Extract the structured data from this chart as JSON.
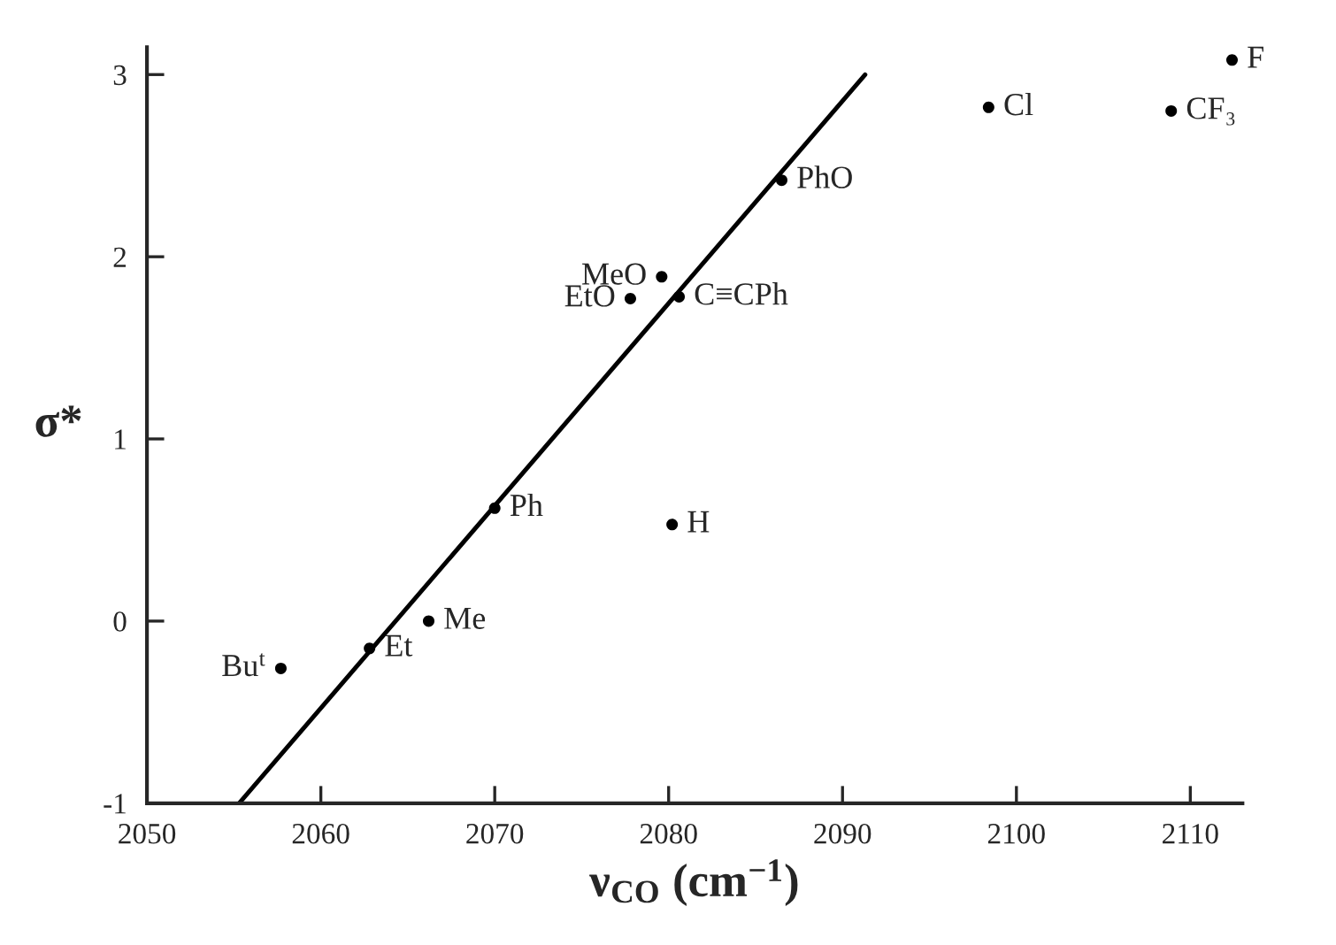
{
  "chart_data": {
    "type": "scatter",
    "xlabel": "ν$_{CO}$ (cm$^{−1}$)",
    "ylabel": "σ*",
    "xlim": [
      2050,
      2113
    ],
    "ylim": [
      -1,
      3.15
    ],
    "xticks": [
      2050,
      2060,
      2070,
      2080,
      2090,
      2100,
      2110
    ],
    "yticks": [
      -1,
      0,
      1,
      2,
      3
    ],
    "marker": "circle",
    "grid": false,
    "legend": false,
    "series": [
      {
        "color": "#000000",
        "x": [
          2057.7,
          2062.8,
          2066.2,
          2070.0,
          2080.2,
          2077.8,
          2079.6,
          2080.6,
          2086.5,
          2098.4,
          2108.9,
          2112.4
        ],
        "values": [
          -0.26,
          -0.15,
          0.0,
          0.62,
          0.53,
          1.77,
          1.89,
          1.78,
          2.42,
          2.82,
          2.8,
          3.08
        ]
      },
      {
        "type": "line",
        "marker": "none",
        "color": "#000000",
        "x": [
          2055.3,
          2091.3
        ],
        "values": [
          -1,
          3
        ]
      }
    ],
    "annotations": [
      {
        "text": "Bu$^{t}$",
        "x": 2057.7,
        "y": -0.26
      },
      {
        "text": "Et",
        "x": 2062.8,
        "y": -0.15
      },
      {
        "text": "Me",
        "x": 2066.2,
        "y": 0.0
      },
      {
        "text": "Ph",
        "x": 2070.0,
        "y": 0.62
      },
      {
        "text": "H",
        "x": 2080.2,
        "y": 0.53
      },
      {
        "text": "EtO",
        "x": 2077.8,
        "y": 1.77
      },
      {
        "text": "MeO",
        "x": 2079.6,
        "y": 1.89
      },
      {
        "text": "C≡CPh",
        "x": 2080.6,
        "y": 1.78
      },
      {
        "text": "PhO",
        "x": 2086.5,
        "y": 2.42
      },
      {
        "text": "Cl",
        "x": 2098.4,
        "y": 2.82
      },
      {
        "text": "CF₃",
        "x": 2108.9,
        "y": 2.8
      },
      {
        "text": "F",
        "x": 2112.4,
        "y": 3.08
      }
    ]
  }
}
